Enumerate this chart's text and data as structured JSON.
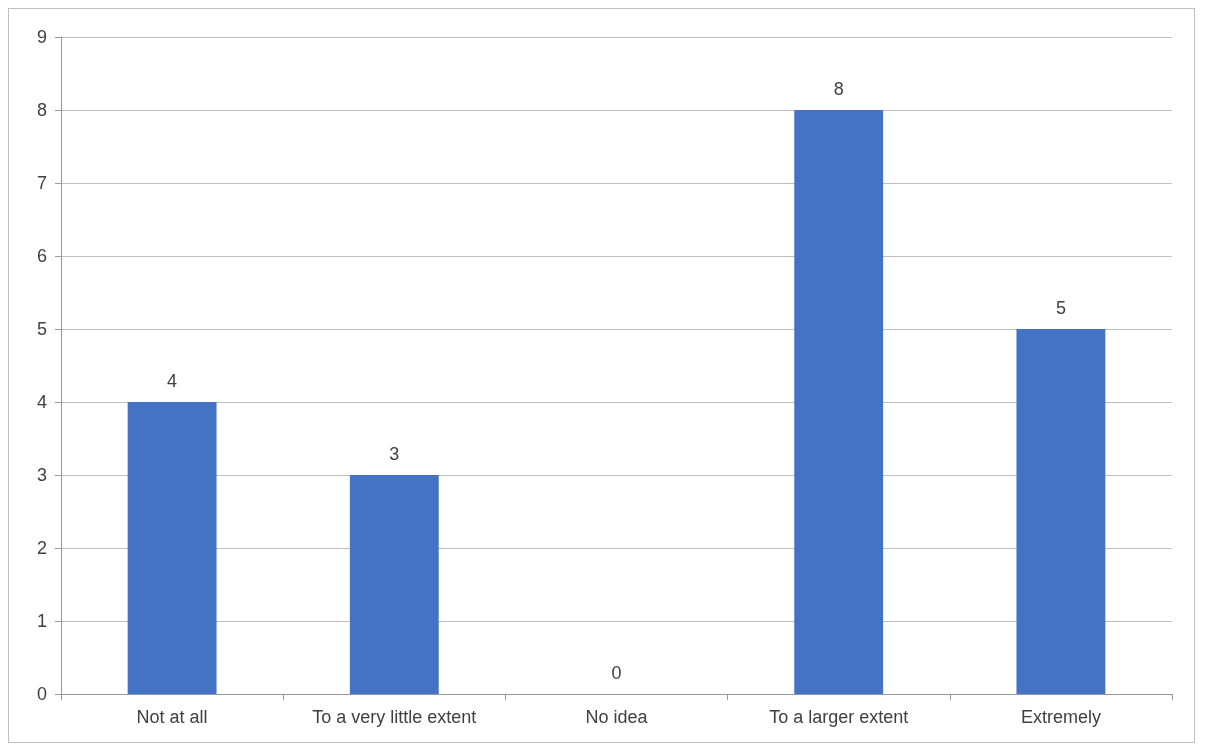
{
  "chart_data": {
    "type": "bar",
    "categories": [
      "Not at all",
      "To a very little extent",
      "No idea",
      "To a larger extent",
      "Extremely"
    ],
    "values": [
      4,
      3,
      0,
      8,
      5
    ],
    "color": "#4472c4",
    "ylim": [
      0,
      9
    ],
    "yticks": [
      0,
      1,
      2,
      3,
      4,
      5,
      6,
      7,
      8,
      9
    ],
    "grid": "y",
    "data_labels": true
  }
}
